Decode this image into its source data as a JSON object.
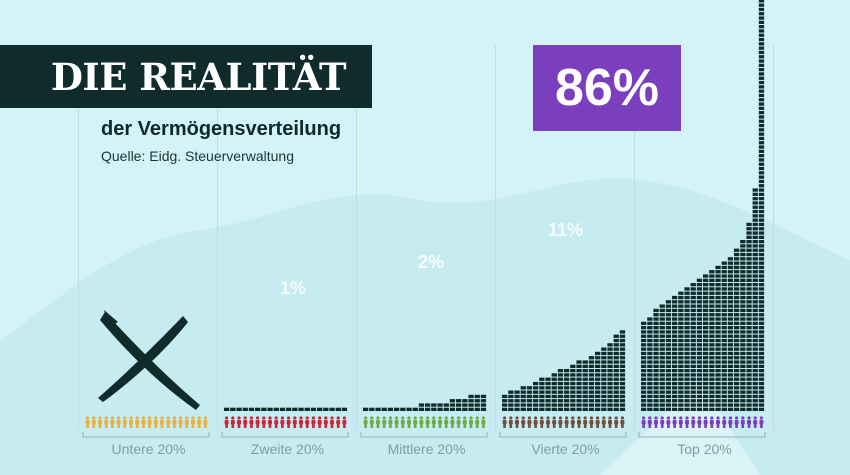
{
  "header": {
    "title": "DIE REALITÄT",
    "subtitle": "der Vermögensverteilung",
    "source": "Quelle: Eidg. Steuerverwaltung"
  },
  "chart_data": {
    "type": "pictogram-bar",
    "highlight_value": "86%",
    "categories": [
      "Untere 20%",
      "Zweite 20%",
      "Mittlere 20%",
      "Vierte 20%",
      "Top 20%"
    ],
    "wealth_share_labels": [
      "",
      "1%",
      "2%",
      "11%",
      "86%"
    ],
    "wealth_share_percent": [
      0,
      1,
      2,
      11,
      86
    ],
    "people_per_group": 20,
    "group_colors": [
      "#e8b040",
      "#c8283a",
      "#6eaa48",
      "#6e5040",
      "#7b3fbe"
    ],
    "bottom_group_marker": "cross-icon",
    "brick_color": "#0f2b2b",
    "highlight_color": "#7b3fbe"
  }
}
